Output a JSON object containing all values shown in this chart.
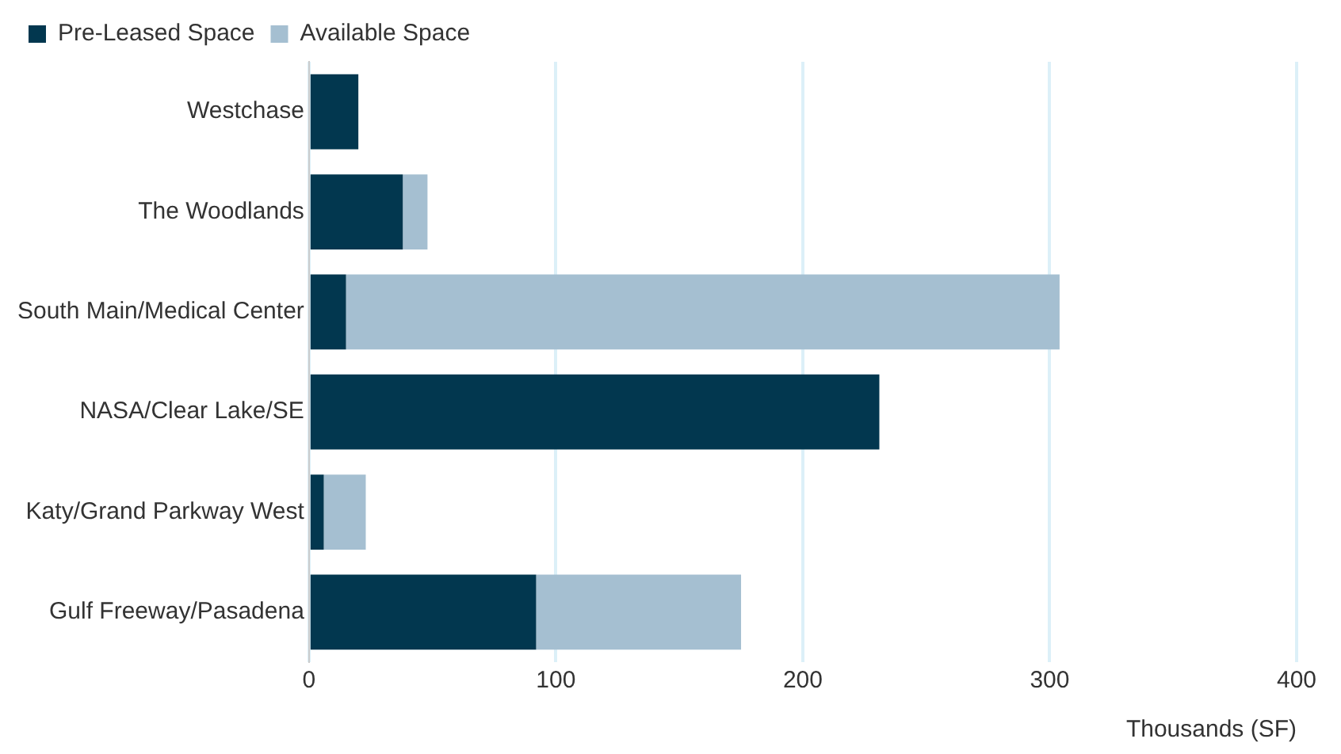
{
  "chart_data": {
    "type": "bar",
    "orientation": "horizontal",
    "stacked": true,
    "categories": [
      "Westchase",
      "The Woodlands",
      "South Main/Medical Center",
      "NASA/Clear Lake/SE",
      "Katy/Grand Parkway West",
      "Gulf Freeway/Pasadena"
    ],
    "series": [
      {
        "name": "Pre-Leased Space",
        "color": "#02374f",
        "values": [
          20,
          38,
          15,
          231,
          6,
          92
        ]
      },
      {
        "name": "Available Space",
        "color": "#a5bfd1",
        "values": [
          0,
          10,
          289,
          0,
          17,
          83
        ]
      }
    ],
    "xlim": [
      0,
      400
    ],
    "xticks": [
      0,
      100,
      200,
      300,
      400
    ],
    "xlabel": "Thousands (SF)",
    "grid": "x",
    "legend": "top left"
  }
}
